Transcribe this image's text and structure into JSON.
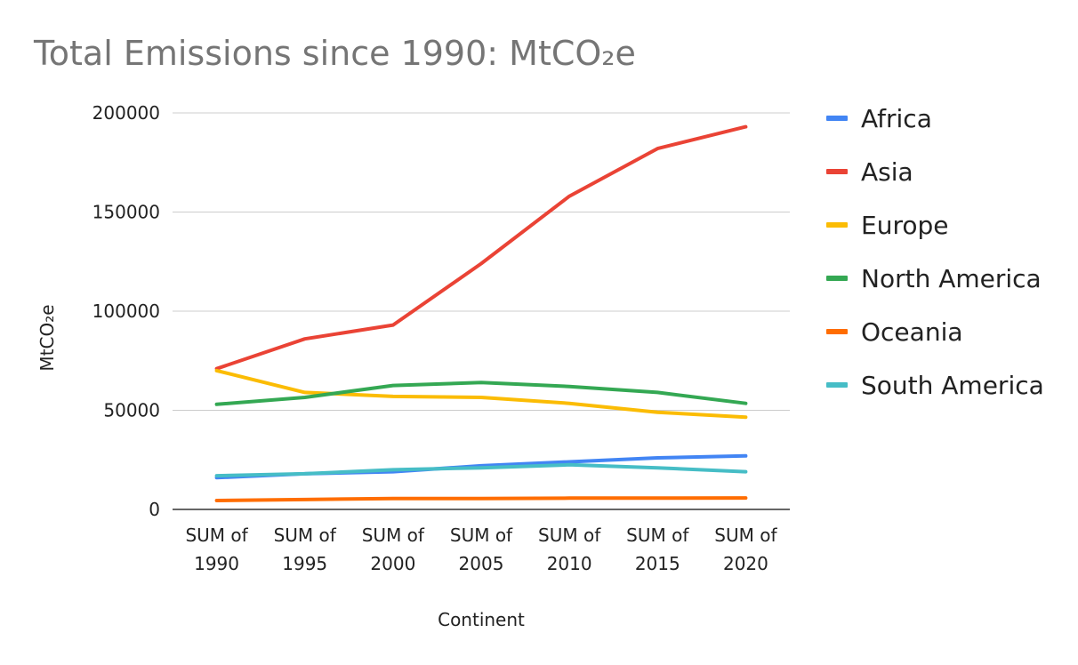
{
  "chart_data": {
    "type": "line",
    "title": "Total Emissions since 1990: MtCO₂e",
    "xlabel": "Continent",
    "ylabel": "MtCO₂e",
    "categories": [
      "SUM of 1990",
      "SUM of 1995",
      "SUM of 2000",
      "SUM of 2005",
      "SUM of 2010",
      "SUM of 2015",
      "SUM of 2020"
    ],
    "ylim": [
      0,
      200000
    ],
    "yticks": [
      0,
      50000,
      100000,
      150000,
      200000
    ],
    "grid": true,
    "legend_position": "right",
    "series": [
      {
        "name": "Africa",
        "color": "#4285f4",
        "values": [
          16000,
          18000,
          19000,
          22000,
          24000,
          26000,
          27000
        ]
      },
      {
        "name": "Asia",
        "color": "#ea4335",
        "values": [
          71000,
          86000,
          93000,
          124000,
          158000,
          182000,
          193000
        ]
      },
      {
        "name": "Europe",
        "color": "#fbbc04",
        "values": [
          70000,
          59000,
          57000,
          56500,
          53500,
          49000,
          46500
        ]
      },
      {
        "name": "North America",
        "color": "#34a853",
        "values": [
          53000,
          56500,
          62500,
          64000,
          62000,
          59000,
          53500
        ]
      },
      {
        "name": "Oceania",
        "color": "#ff6d01",
        "values": [
          4500,
          5000,
          5500,
          5500,
          5700,
          5700,
          5800
        ]
      },
      {
        "name": "South America",
        "color": "#46bdc6",
        "values": [
          17000,
          18000,
          20000,
          21000,
          22500,
          21000,
          19000
        ]
      }
    ]
  }
}
